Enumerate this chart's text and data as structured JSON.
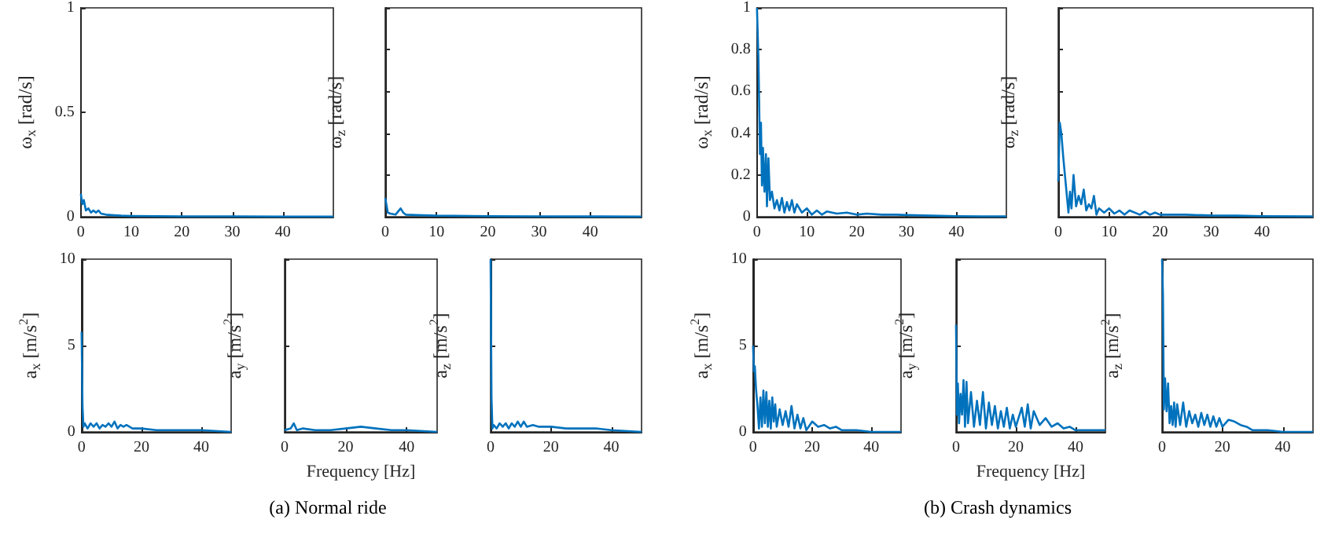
{
  "chart_data": [
    {
      "type": "line",
      "ylabel": "ω$_{x}$ [rad/s]",
      "xlim": [
        0,
        50
      ],
      "xticks": [
        0,
        10,
        20,
        30,
        40
      ],
      "ylim": [
        0,
        1
      ],
      "yticks": [
        0,
        0.5,
        1
      ],
      "series": [
        {
          "color": "#0072bd",
          "x": [
            0,
            0.3,
            0.6,
            1,
            1.5,
            2,
            2.5,
            3,
            3.5,
            4,
            5,
            6,
            8,
            10,
            15,
            20,
            30,
            40,
            50
          ],
          "values": [
            0.11,
            0.06,
            0.08,
            0.03,
            0.04,
            0.02,
            0.03,
            0.02,
            0.03,
            0.015,
            0.01,
            0.008,
            0.005,
            0.004,
            0.003,
            0.002,
            0.002,
            0.001,
            0.001
          ]
        }
      ]
    },
    {
      "type": "line",
      "ylabel": "ω$_{z}$ [rad/s]",
      "xlim": [
        0,
        50
      ],
      "xticks": [
        0,
        10,
        20,
        30,
        40
      ],
      "ylim": [
        0,
        1
      ],
      "yticks": [
        0,
        0.2,
        0.4,
        0.6,
        0.8,
        1
      ],
      "tick_labels": "x",
      "series": [
        {
          "color": "#0072bd",
          "x": [
            0,
            0.5,
            1,
            2,
            3,
            3.5,
            4,
            6,
            10,
            20,
            30,
            50
          ],
          "values": [
            0.09,
            0.02,
            0.015,
            0.01,
            0.04,
            0.02,
            0.01,
            0.008,
            0.005,
            0.003,
            0.002,
            0.001
          ]
        }
      ]
    },
    {
      "type": "line",
      "ylabel": "a$_{x}$ [m/s$^{2}$]",
      "xlim": [
        0,
        50
      ],
      "xticks": [
        0,
        20,
        40
      ],
      "ylim": [
        0,
        10
      ],
      "yticks": [
        0,
        5,
        10
      ],
      "series": [
        {
          "color": "#0072bd",
          "x": [
            0,
            0.3,
            0.6,
            1,
            2,
            3,
            4,
            5,
            6,
            7,
            8,
            9,
            10,
            11,
            12,
            13,
            14,
            15,
            17,
            20,
            25,
            30,
            40,
            50
          ],
          "values": [
            5.8,
            1.5,
            0.3,
            0.5,
            0.2,
            0.5,
            0.3,
            0.5,
            0.2,
            0.4,
            0.3,
            0.5,
            0.3,
            0.6,
            0.2,
            0.4,
            0.3,
            0.4,
            0.2,
            0.2,
            0.1,
            0.1,
            0.1,
            0
          ]
        }
      ]
    },
    {
      "type": "line",
      "ylabel": "a$_{y}$ [m/s$^{2}$]",
      "xlabel": "Frequency [Hz]",
      "annotations": [
        "(a) Normal ride"
      ],
      "xlim": [
        0,
        50
      ],
      "xticks": [
        0,
        20,
        40
      ],
      "ylim": [
        0,
        10
      ],
      "yticks": [
        0,
        5,
        10
      ],
      "tick_labels": "x",
      "series": [
        {
          "color": "#0072bd",
          "x": [
            0,
            2,
            3,
            4,
            6,
            10,
            15,
            20,
            25,
            30,
            35,
            40,
            50
          ],
          "values": [
            0.1,
            0.2,
            0.5,
            0.1,
            0.2,
            0.1,
            0.1,
            0.2,
            0.3,
            0.2,
            0.1,
            0.1,
            0
          ]
        }
      ]
    },
    {
      "type": "line",
      "ylabel": "a$_{z}$ [m/s$^{2}$]",
      "xlim": [
        0,
        50
      ],
      "xticks": [
        0,
        20,
        40
      ],
      "ylim": [
        0,
        10
      ],
      "yticks": [
        0,
        5,
        10
      ],
      "tick_labels": "x",
      "series": [
        {
          "color": "#0072bd",
          "x": [
            0,
            0.3,
            0.6,
            1,
            2,
            3,
            4,
            5,
            6,
            7,
            8,
            9,
            10,
            11,
            12,
            14,
            16,
            20,
            25,
            30,
            35,
            40,
            50
          ],
          "values": [
            10,
            2,
            0.2,
            0.4,
            0.2,
            0.5,
            0.3,
            0.5,
            0.2,
            0.5,
            0.3,
            0.6,
            0.3,
            0.6,
            0.3,
            0.4,
            0.3,
            0.3,
            0.2,
            0.2,
            0.2,
            0.1,
            0
          ]
        }
      ]
    },
    {
      "type": "line",
      "ylabel": "ω$_{x}$ [rad/s]",
      "xlim": [
        0,
        50
      ],
      "xticks": [
        0,
        10,
        20,
        30,
        40
      ],
      "ylim": [
        0,
        1
      ],
      "yticks": [
        0,
        0.2,
        0.4,
        0.6,
        0.8,
        1
      ],
      "series": [
        {
          "color": "#0072bd",
          "x": [
            0,
            0.3,
            0.6,
            0.8,
            1,
            1.2,
            1.5,
            1.8,
            2,
            2.3,
            2.6,
            3,
            3.5,
            4,
            4.5,
            5,
            5.5,
            6,
            6.5,
            7,
            7.5,
            8,
            9,
            10,
            11,
            12,
            13,
            14,
            16,
            18,
            20,
            22,
            25,
            28,
            30,
            35,
            40,
            45,
            50
          ],
          "values": [
            1,
            0.75,
            0.3,
            0.45,
            0.15,
            0.33,
            0.12,
            0.3,
            0.05,
            0.28,
            0.08,
            0.12,
            0.04,
            0.08,
            0.03,
            0.09,
            0.02,
            0.07,
            0.03,
            0.08,
            0.02,
            0.06,
            0.02,
            0.04,
            0.01,
            0.03,
            0.01,
            0.025,
            0.015,
            0.02,
            0.01,
            0.015,
            0.01,
            0.01,
            0.008,
            0.005,
            0.003,
            0.002,
            0.002
          ]
        }
      ]
    },
    {
      "type": "line",
      "ylabel": "ω$_{z}$ [rad/s]",
      "xlim": [
        0,
        50
      ],
      "xticks": [
        0,
        10,
        20,
        30,
        40
      ],
      "ylim": [
        0,
        1
      ],
      "yticks": [
        0,
        0.2,
        0.4,
        0.6,
        0.8,
        1
      ],
      "tick_labels": "x",
      "series": [
        {
          "color": "#0072bd",
          "x": [
            0,
            0.3,
            0.6,
            1,
            1.5,
            2,
            2.3,
            2.6,
            3,
            3.5,
            4,
            4.5,
            5,
            5.5,
            6,
            6.5,
            7,
            7.5,
            8,
            9,
            10,
            11,
            12,
            13,
            14,
            16,
            17,
            18,
            19,
            20,
            25,
            30,
            35,
            40,
            50
          ],
          "values": [
            0.17,
            0.45,
            0.4,
            0.28,
            0.15,
            0.02,
            0.12,
            0.04,
            0.2,
            0.05,
            0.1,
            0.06,
            0.13,
            0.03,
            0.06,
            0.04,
            0.1,
            0.01,
            0.04,
            0.02,
            0.04,
            0.015,
            0.03,
            0.01,
            0.03,
            0.01,
            0.025,
            0.01,
            0.02,
            0.01,
            0.01,
            0.006,
            0.005,
            0.003,
            0.002
          ]
        }
      ]
    },
    {
      "type": "line",
      "ylabel": "a$_{x}$ [m/s$^{2}$]",
      "xlim": [
        0,
        50
      ],
      "xticks": [
        0,
        20,
        40
      ],
      "ylim": [
        0,
        10
      ],
      "yticks": [
        0,
        5,
        10
      ],
      "series": [
        {
          "color": "#0072bd",
          "x": [
            0,
            0.3,
            0.6,
            1,
            1.5,
            2,
            2.5,
            3,
            3.5,
            4,
            4.5,
            5,
            5.5,
            6,
            6.5,
            7,
            7.5,
            8,
            9,
            10,
            11,
            12,
            13,
            14,
            15,
            16,
            17,
            18,
            20,
            22,
            24,
            26,
            28,
            30,
            35,
            40,
            50
          ],
          "values": [
            5,
            3.5,
            3.8,
            2.5,
            1.5,
            0.2,
            2,
            0.3,
            2.4,
            0.5,
            2.3,
            0.3,
            1.8,
            0.2,
            2,
            0.6,
            1.6,
            0.3,
            1.3,
            0.4,
            1.2,
            0.3,
            1.5,
            0.2,
            1,
            0.2,
            0.8,
            0.1,
            0.6,
            0.3,
            0.4,
            0.2,
            0.3,
            0.1,
            0.1,
            0,
            0
          ]
        }
      ]
    },
    {
      "type": "line",
      "ylabel": "a$_{y}$ [m/s$^{2}$]",
      "xlabel": "Frequency [Hz]",
      "annotations": [
        "(b) Crash dynamics"
      ],
      "xlim": [
        0,
        50
      ],
      "xticks": [
        0,
        20,
        40
      ],
      "ylim": [
        0,
        10
      ],
      "yticks": [
        0,
        5,
        10
      ],
      "tick_labels": "x",
      "series": [
        {
          "color": "#0072bd",
          "x": [
            0,
            0.3,
            0.6,
            1,
            1.5,
            2,
            2.5,
            3,
            3.5,
            4,
            5,
            6,
            7,
            8,
            9,
            10,
            11,
            12,
            13,
            14,
            15,
            16,
            17,
            18,
            19,
            20,
            22,
            23,
            24,
            25,
            26,
            28,
            30,
            32,
            34,
            36,
            38,
            40,
            45,
            50
          ],
          "values": [
            6.2,
            1,
            2.8,
            0.5,
            2.2,
            1,
            3,
            0.3,
            2.9,
            0.5,
            2.3,
            0.3,
            1.8,
            0.4,
            2.3,
            0.2,
            1.7,
            0.4,
            1.5,
            0.2,
            1.2,
            0.3,
            1.4,
            0.2,
            1,
            0.3,
            1.4,
            0.3,
            1.6,
            0.2,
            1.2,
            0.4,
            0.8,
            0.3,
            0.5,
            0.2,
            0.3,
            0.1,
            0.1,
            0.1
          ]
        }
      ]
    },
    {
      "type": "line",
      "ylabel": "a$_{z}$ [m/s$^{2}$]",
      "xlim": [
        0,
        50
      ],
      "xticks": [
        0,
        20,
        40
      ],
      "ylim": [
        0,
        10
      ],
      "yticks": [
        0,
        5,
        10
      ],
      "tick_labels": "x",
      "series": [
        {
          "color": "#0072bd",
          "x": [
            0,
            0.3,
            0.6,
            1,
            1.5,
            2,
            2.5,
            3,
            3.5,
            4,
            4.5,
            5,
            6,
            7,
            8,
            9,
            10,
            11,
            12,
            13,
            14,
            15,
            16,
            17,
            18,
            19,
            20,
            22,
            24,
            26,
            28,
            30,
            35,
            40,
            50
          ],
          "values": [
            10,
            8,
            1.3,
            3.1,
            1.2,
            2.8,
            0.5,
            1.5,
            0.4,
            1.7,
            0.3,
            1.6,
            0.4,
            1.7,
            0.3,
            1.2,
            0.5,
            1,
            0.3,
            1.1,
            0.4,
            1,
            0.3,
            0.9,
            0.3,
            0.8,
            0.3,
            0.7,
            0.6,
            0.4,
            0.3,
            0.1,
            0.1,
            0,
            0
          ]
        }
      ]
    }
  ]
}
